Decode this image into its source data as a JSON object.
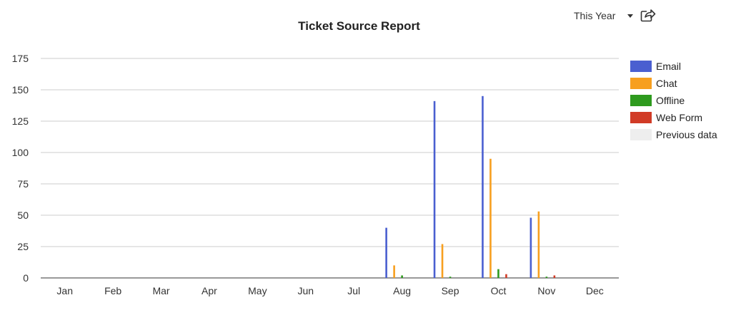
{
  "header": {
    "title": "Ticket Source Report",
    "period_label": "This Year",
    "share_icon": "share-icon"
  },
  "colors": {
    "email": "#4a5fd0",
    "chat": "#f79f1f",
    "offline": "#2e9a1e",
    "web_form": "#d13b26",
    "previous": "#eeeeee",
    "grid": "#cccccc"
  },
  "legend": [
    {
      "label": "Email",
      "color": "#4a5fd0"
    },
    {
      "label": "Chat",
      "color": "#f79f1f"
    },
    {
      "label": "Offline",
      "color": "#2e9a1e"
    },
    {
      "label": "Web Form",
      "color": "#d13b26"
    },
    {
      "label": "Previous data",
      "color": "#eeeeee"
    }
  ],
  "chart_data": {
    "type": "bar",
    "title": "Ticket Source Report",
    "xlabel": "",
    "ylabel": "",
    "categories": [
      "Jan",
      "Feb",
      "Mar",
      "Apr",
      "May",
      "Jun",
      "Jul",
      "Aug",
      "Sep",
      "Oct",
      "Nov",
      "Dec"
    ],
    "ylim": [
      0,
      175
    ],
    "yticks": [
      0,
      25,
      50,
      75,
      100,
      125,
      150,
      175
    ],
    "grid": true,
    "legend_position": "right",
    "series": [
      {
        "name": "Email",
        "color": "#4a5fd0",
        "values": [
          0,
          0,
          0,
          0,
          0,
          0,
          0,
          40,
          141,
          145,
          48,
          0
        ]
      },
      {
        "name": "Chat",
        "color": "#f79f1f",
        "values": [
          0,
          0,
          0,
          0,
          0,
          0,
          0,
          10,
          27,
          95,
          53,
          0
        ]
      },
      {
        "name": "Offline",
        "color": "#2e9a1e",
        "values": [
          0,
          0,
          0,
          0,
          0,
          0,
          0,
          2,
          1,
          7,
          1,
          0
        ]
      },
      {
        "name": "Web Form",
        "color": "#d13b26",
        "values": [
          0,
          0,
          0,
          0,
          0,
          0,
          0,
          0,
          0,
          3,
          2,
          0
        ]
      },
      {
        "name": "Previous data",
        "color": "#eeeeee",
        "values": [
          0,
          0,
          0,
          0,
          0,
          0,
          0,
          0,
          0,
          0,
          0,
          0
        ]
      }
    ]
  }
}
